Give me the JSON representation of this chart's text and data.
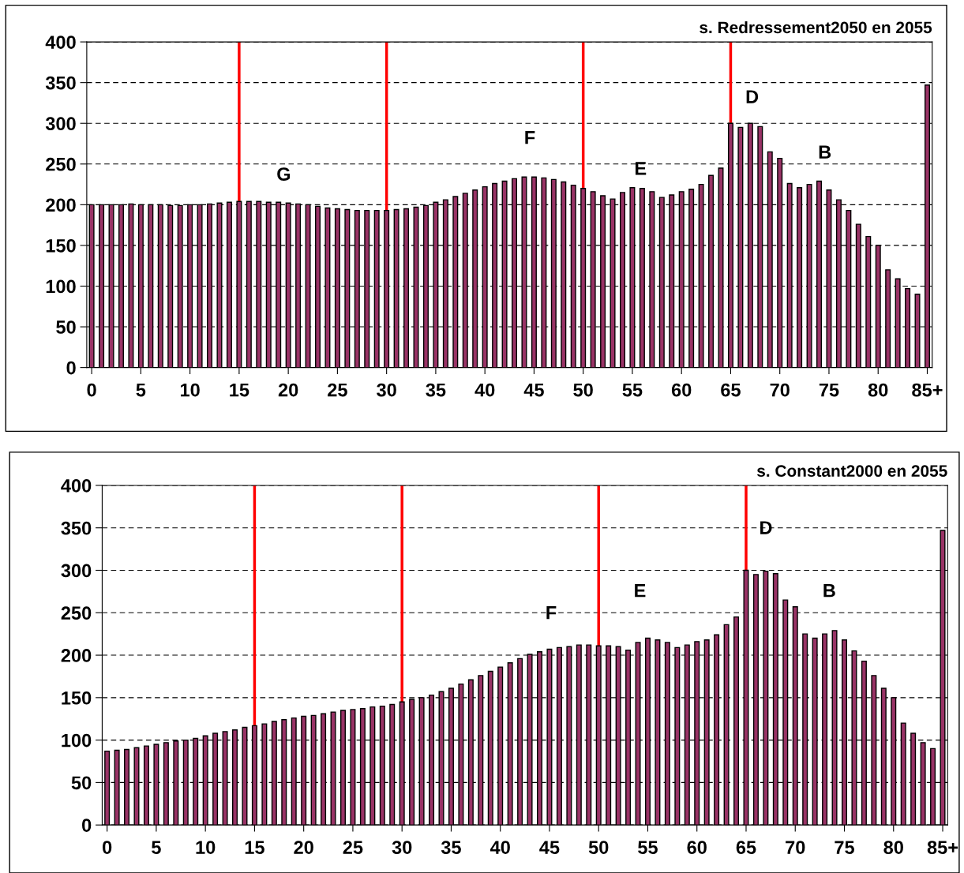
{
  "chart_data": [
    {
      "type": "bar",
      "title": "s. Redressement2050 en 2055",
      "x": [
        0,
        1,
        2,
        3,
        4,
        5,
        6,
        7,
        8,
        9,
        10,
        11,
        12,
        13,
        14,
        15,
        16,
        17,
        18,
        19,
        20,
        21,
        22,
        23,
        24,
        25,
        26,
        27,
        28,
        29,
        30,
        31,
        32,
        33,
        34,
        35,
        36,
        37,
        38,
        39,
        40,
        41,
        42,
        43,
        44,
        45,
        46,
        47,
        48,
        49,
        50,
        51,
        52,
        53,
        54,
        55,
        56,
        57,
        58,
        59,
        60,
        61,
        62,
        63,
        64,
        65,
        66,
        67,
        68,
        69,
        70,
        71,
        72,
        73,
        74,
        75,
        76,
        77,
        78,
        79,
        80,
        81,
        82,
        83,
        84,
        85
      ],
      "values": [
        200,
        200,
        200,
        200,
        201,
        200,
        200,
        200,
        199,
        199,
        200,
        200,
        201,
        202,
        203,
        204,
        204,
        204,
        203,
        203,
        202,
        201,
        200,
        198,
        196,
        195,
        194,
        193,
        193,
        193,
        193,
        194,
        195,
        197,
        199,
        203,
        206,
        210,
        214,
        218,
        222,
        226,
        229,
        232,
        234,
        234,
        233,
        231,
        228,
        224,
        220,
        216,
        211,
        207,
        215,
        221,
        220,
        216,
        209,
        212,
        216,
        219,
        225,
        236,
        245,
        300,
        295,
        300,
        296,
        265,
        257,
        226,
        221,
        225,
        229,
        218,
        206,
        193,
        176,
        161,
        150,
        120,
        109,
        97,
        90,
        347
      ],
      "color": "#993366",
      "xlim": [
        -0.5,
        85.5
      ],
      "xticks": [
        0,
        5,
        10,
        15,
        20,
        25,
        30,
        35,
        40,
        45,
        50,
        55,
        60,
        65,
        70,
        75,
        80,
        {
          "value": 85,
          "label": "85+"
        }
      ],
      "ylim": [
        0,
        400
      ],
      "yticks": [
        0,
        50,
        100,
        150,
        200,
        250,
        300,
        350,
        400
      ],
      "grid": "y",
      "ref_lines": [
        {
          "axis": "x",
          "value": 15,
          "color": "#ff0000"
        },
        {
          "axis": "x",
          "value": 30,
          "color": "#ff0000"
        },
        {
          "axis": "x",
          "value": 50,
          "color": "#ff0000"
        },
        {
          "axis": "x",
          "value": 65,
          "color": "#ff0000"
        }
      ],
      "annotations": [
        "G",
        "F",
        "E",
        "D",
        "B"
      ]
    },
    {
      "type": "bar",
      "title": "s. Constant2000 en 2055",
      "x": [
        0,
        1,
        2,
        3,
        4,
        5,
        6,
        7,
        8,
        9,
        10,
        11,
        12,
        13,
        14,
        15,
        16,
        17,
        18,
        19,
        20,
        21,
        22,
        23,
        24,
        25,
        26,
        27,
        28,
        29,
        30,
        31,
        32,
        33,
        34,
        35,
        36,
        37,
        38,
        39,
        40,
        41,
        42,
        43,
        44,
        45,
        46,
        47,
        48,
        49,
        50,
        51,
        52,
        53,
        54,
        55,
        56,
        57,
        58,
        59,
        60,
        61,
        62,
        63,
        64,
        65,
        66,
        67,
        68,
        69,
        70,
        71,
        72,
        73,
        74,
        75,
        76,
        77,
        78,
        79,
        80,
        81,
        82,
        83,
        84,
        85
      ],
      "values": [
        87,
        88,
        89,
        91,
        93,
        95,
        97,
        99,
        100,
        102,
        105,
        108,
        110,
        112,
        115,
        117,
        119,
        122,
        124,
        126,
        128,
        129,
        131,
        133,
        135,
        136,
        137,
        139,
        140,
        142,
        145,
        148,
        150,
        153,
        157,
        161,
        166,
        171,
        176,
        181,
        186,
        191,
        196,
        201,
        204,
        207,
        209,
        210,
        212,
        212,
        211,
        211,
        210,
        206,
        215,
        220,
        218,
        215,
        209,
        212,
        216,
        218,
        224,
        236,
        245,
        300,
        295,
        299,
        296,
        265,
        257,
        225,
        220,
        225,
        229,
        218,
        205,
        193,
        176,
        161,
        150,
        120,
        108,
        97,
        90,
        347
      ],
      "color": "#993366",
      "xlim": [
        -0.5,
        85.5
      ],
      "xticks": [
        0,
        5,
        10,
        15,
        20,
        25,
        30,
        35,
        40,
        45,
        50,
        55,
        60,
        65,
        70,
        75,
        80,
        {
          "value": 85,
          "label": "85+"
        }
      ],
      "ylim": [
        0,
        400
      ],
      "yticks": [
        0,
        50,
        100,
        150,
        200,
        250,
        300,
        350,
        400
      ],
      "grid": "y",
      "ref_lines": [
        {
          "axis": "x",
          "value": 15,
          "color": "#ff0000"
        },
        {
          "axis": "x",
          "value": 30,
          "color": "#ff0000"
        },
        {
          "axis": "x",
          "value": 50,
          "color": "#ff0000"
        },
        {
          "axis": "x",
          "value": 65,
          "color": "#ff0000"
        }
      ],
      "annotations": [
        "F",
        "E",
        "D",
        "B"
      ]
    }
  ]
}
